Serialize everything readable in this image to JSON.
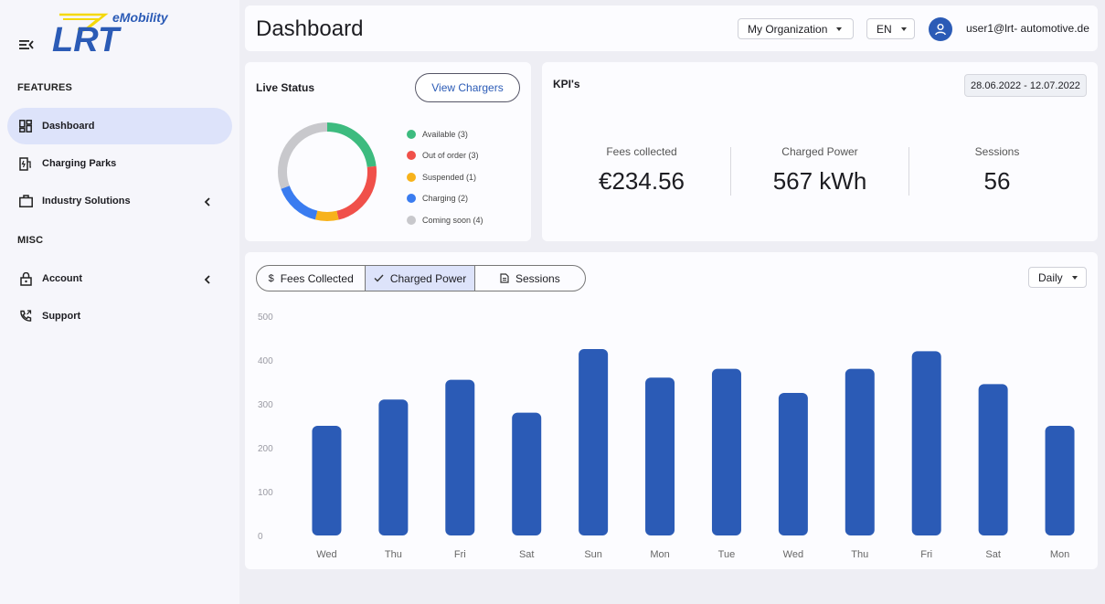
{
  "brand": {
    "logo_text": "LRT",
    "logo_subtext": "eMobility",
    "accent": "#2b5bb6",
    "logo_yellow": "#f5d90a"
  },
  "sidebar": {
    "sections": [
      {
        "label": "FEATURES"
      },
      {
        "label": "MISC"
      }
    ],
    "items": [
      {
        "label": "Dashboard",
        "icon": "dashboard-icon",
        "active": true
      },
      {
        "label": "Charging Parks",
        "icon": "charging-station-icon"
      },
      {
        "label": "Industry Solutions",
        "icon": "briefcase-icon",
        "has_chevron": true
      },
      {
        "label": "Account",
        "icon": "lock-icon",
        "has_chevron": true
      },
      {
        "label": "Support",
        "icon": "phone-icon"
      }
    ]
  },
  "header": {
    "title": "Dashboard",
    "organization": "My Organization",
    "language": "EN",
    "user_email": "user1@lrt- automotive.de"
  },
  "live_status": {
    "title": "Live Status",
    "view_button": "View Chargers",
    "legend": [
      {
        "label": "Available (3)",
        "color": "#3dbb7f",
        "count": 3
      },
      {
        "label": "Out of order (3)",
        "color": "#f0504a",
        "count": 3
      },
      {
        "label": "Suspended (1)",
        "color": "#f7b21b",
        "count": 1
      },
      {
        "label": "Charging (2)",
        "color": "#3a7cf0",
        "count": 2
      },
      {
        "label": "Coming soon (4)",
        "color": "#c8c8cc",
        "count": 4
      }
    ]
  },
  "kpis": {
    "title": "KPI's",
    "date_range": "28.06.2022 - 12.07.2022",
    "items": [
      {
        "label": "Fees collected",
        "value": "€234.56"
      },
      {
        "label": "Charged Power",
        "value": "567 kWh"
      },
      {
        "label": "Sessions",
        "value": "56"
      }
    ]
  },
  "chart_panel": {
    "tabs": [
      {
        "label": "Fees Collected",
        "icon": "dollar-icon",
        "selected": false
      },
      {
        "label": "Charged Power",
        "icon": "check-icon",
        "selected": true
      },
      {
        "label": "Sessions",
        "icon": "document-icon",
        "selected": false
      }
    ],
    "period": "Daily"
  },
  "chart_data": {
    "type": "bar",
    "title": "",
    "xlabel": "",
    "ylabel": "",
    "ylim": [
      0,
      500
    ],
    "yticks": [
      500,
      400,
      300,
      200,
      100,
      0
    ],
    "categories": [
      "Wed",
      "Thu",
      "Fri",
      "Sat",
      "Sun",
      "Mon",
      "Tue",
      "Wed",
      "Thu",
      "Fri",
      "Sat",
      "Mon"
    ],
    "values": [
      250,
      310,
      355,
      280,
      425,
      360,
      380,
      325,
      380,
      420,
      345,
      250
    ],
    "color": "#2b5bb6"
  }
}
